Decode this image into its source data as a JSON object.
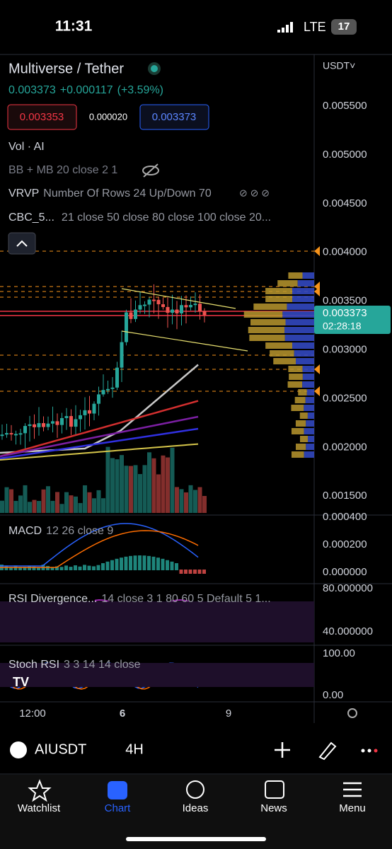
{
  "status": {
    "time": "11:31",
    "network": "LTE",
    "battery": "17"
  },
  "header": {
    "title": "Multiverse / Tether",
    "price": "0.003373",
    "change": "+0.000117",
    "percent": "(+3.59%)",
    "bid": "0.003353",
    "spread": "0.000020",
    "ask": "0.003373"
  },
  "indicators": [
    "Vol · AI",
    "BB + MB 20 close 2 1",
    "VRVP",
    "Number Of Rows 24 Up/Down 70",
    "CBC_5...",
    "21 close 50 close 80 close 100 close 20..."
  ],
  "price_axis": {
    "currency": "USDT˅",
    "ticks": [
      "0.005500",
      "0.005000",
      "0.004500",
      "0.004000",
      "0.003500",
      "0.003000",
      "0.002500",
      "0.002000",
      "0.001500"
    ],
    "last_price": "0.003373",
    "countdown": "02:28:18"
  },
  "macd": {
    "label": "MACD",
    "params": "12 26 close 9",
    "ticks": [
      "0.000400",
      "0.000200",
      "0.000000"
    ]
  },
  "rsi": {
    "label": "RSI Divergence...",
    "params": "14 close 3 1 80 60 5 Default 5 1...",
    "ticks": [
      "80.000000",
      "40.000000"
    ]
  },
  "stoch": {
    "label": "Stoch RSI",
    "params": "3 3 14 14 close",
    "ticks": [
      "100.00",
      "0.00"
    ]
  },
  "time_axis": [
    "12:00",
    "6",
    "9"
  ],
  "toolbar": {
    "symbol": "AIUSDT",
    "interval": "4H"
  },
  "tabs": [
    "Watchlist",
    "Chart",
    "Ideas",
    "News",
    "Menu"
  ]
}
